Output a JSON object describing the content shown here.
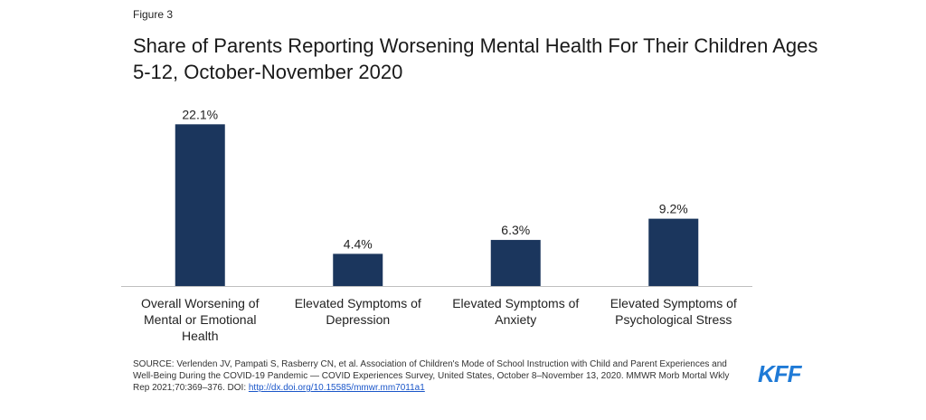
{
  "figure_label": "Figure 3",
  "colors": {
    "bar": "#1b365d",
    "axis": "#bfbfbf",
    "logo": "#1f7ad6"
  },
  "chart_data": {
    "type": "bar",
    "title": "Share of Parents Reporting Worsening Mental Health For Their Children Ages 5-12, October-November 2020",
    "categories": [
      [
        "Overall Worsening of",
        "Mental or Emotional",
        "Health"
      ],
      [
        "Elevated Symptoms of",
        "Depression"
      ],
      [
        "Elevated Symptoms of",
        "Anxiety"
      ],
      [
        "Elevated Symptoms of",
        "Psychological Stress"
      ]
    ],
    "values": [
      22.1,
      4.4,
      6.3,
      9.2
    ],
    "data_labels": [
      "22.1%",
      "4.4%",
      "6.3%",
      "9.2%"
    ],
    "ylim": [
      0,
      23.5
    ],
    "grid": false,
    "legend": "none"
  },
  "source": {
    "text": "SOURCE: Verlenden JV, Pampati S, Rasberry CN, et al. Association of Children's Mode of School Instruction with Child and Parent Experiences and Well-Being During the COVID-19 Pandemic — COVID Experiences Survey, United States, October 8–November 13, 2020. MMWR Morb Mortal Wkly Rep 2021;70:369–376. DOI: ",
    "link": "http://dx.doi.org/10.15585/mmwr.mm7011a1"
  },
  "logo_text": "KFF"
}
